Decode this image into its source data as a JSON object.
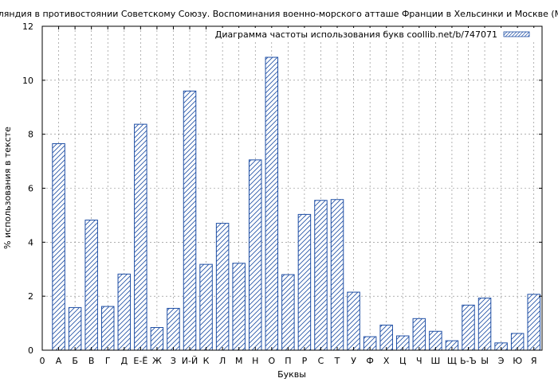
{
  "chart_data": {
    "type": "bar",
    "title": "Финляндия в противостоянии Советскому Союзу. Воспоминания военно-морского атташе Франции в Хельсинки и Москве (Мари",
    "xlabel": "Буквы",
    "ylabel": "% использования в тексте",
    "ylim": [
      0,
      12
    ],
    "yticks": [
      "0",
      "2",
      "4",
      "6",
      "8",
      "10",
      "12"
    ],
    "grid": true,
    "legend_position": "top-right",
    "x_first_label": "0",
    "categories": [
      "А",
      "Б",
      "В",
      "Г",
      "Д",
      "Е-Ё",
      "Ж",
      "З",
      "И-Й",
      "К",
      "Л",
      "М",
      "Н",
      "О",
      "П",
      "Р",
      "С",
      "Т",
      "У",
      "Ф",
      "Х",
      "Ц",
      "Ч",
      "Ш",
      "Щ",
      "Ь-Ъ",
      "Ы",
      "Э",
      "Ю",
      "Я"
    ],
    "series": [
      {
        "name": "Диаграмма частоты использования букв coollib.net/b/747071",
        "values": [
          7.65,
          1.58,
          4.82,
          1.62,
          2.82,
          8.37,
          0.84,
          1.55,
          9.6,
          3.18,
          4.7,
          3.22,
          7.05,
          10.85,
          2.8,
          5.03,
          5.55,
          5.58,
          2.15,
          0.5,
          0.93,
          0.53,
          1.17,
          0.7,
          0.35,
          1.67,
          1.93,
          0.27,
          0.62,
          2.07
        ]
      }
    ],
    "colors": {
      "bar_stroke": "#1f4fa5",
      "grid": "#808080",
      "axis": "#000000"
    }
  }
}
